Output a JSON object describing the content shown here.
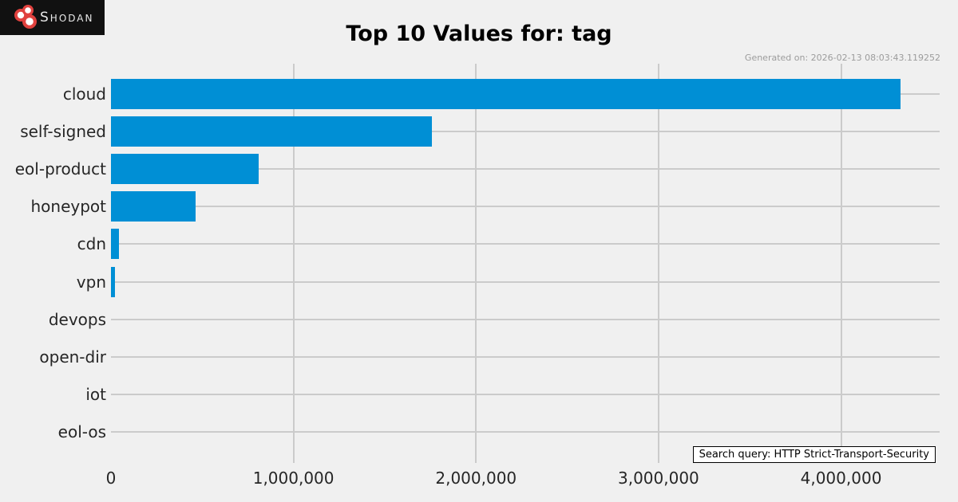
{
  "logo": {
    "brand": "Shodan",
    "icon": "shodan-berries-icon"
  },
  "header": {
    "generated_on": "Generated on: 2026-02-13 08:03:43.119252"
  },
  "footer": {
    "search_query": "Search query: HTTP Strict-Transport-Security"
  },
  "colors": {
    "background": "#f0f0f0",
    "bar": "#008fd5",
    "grid": "#cbcbcb",
    "logo_background": "#111111",
    "logo_red": "#e0413e"
  },
  "chart_data": {
    "type": "bar",
    "orientation": "horizontal",
    "title": "Top 10 Values for: tag",
    "categories": [
      "cloud",
      "self-signed",
      "eol-product",
      "honeypot",
      "cdn",
      "vpn",
      "devops",
      "open-dir",
      "iot",
      "eol-os"
    ],
    "values": [
      4330000,
      1760000,
      810000,
      465000,
      44000,
      22000,
      4000,
      3000,
      2500,
      2000
    ],
    "xlabel": "",
    "ylabel": "",
    "xlim": [
      0,
      4540000
    ],
    "xticks": [
      0,
      1000000,
      2000000,
      3000000,
      4000000
    ],
    "xtick_labels": [
      "0",
      "1,000,000",
      "2,000,000",
      "3,000,000",
      "4,000,000"
    ],
    "grid": true,
    "legend": false,
    "bar_color": "#008fd5"
  }
}
